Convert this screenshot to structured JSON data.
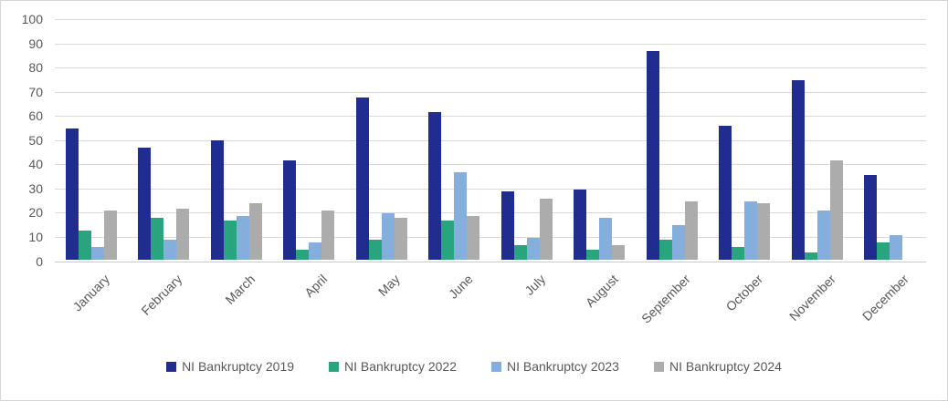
{
  "chart_data": {
    "type": "bar",
    "title": "",
    "xlabel": "",
    "ylabel": "",
    "ylim": [
      0,
      100
    ],
    "ytick_step": 10,
    "grid": true,
    "legend_position": "bottom",
    "categories": [
      "January",
      "February",
      "March",
      "April",
      "May",
      "June",
      "July",
      "August",
      "September",
      "October",
      "November",
      "December"
    ],
    "series": [
      {
        "name": "NI Bankruptcy 2019",
        "color": "#212c8f",
        "values": [
          54,
          46,
          49,
          41,
          67,
          61,
          28,
          29,
          86,
          55,
          74,
          35
        ]
      },
      {
        "name": "NI Bankruptcy 2022",
        "color": "#28a57e",
        "values": [
          12,
          17,
          16,
          4,
          8,
          16,
          6,
          4,
          8,
          5,
          3,
          7
        ]
      },
      {
        "name": "NI Bankruptcy 2023",
        "color": "#84aedc",
        "values": [
          5,
          8,
          18,
          7,
          19,
          36,
          9,
          17,
          14,
          24,
          20,
          10
        ]
      },
      {
        "name": "NI Bankruptcy 2024",
        "color": "#acacac",
        "values": [
          20,
          21,
          23,
          20,
          17,
          18,
          25,
          6,
          24,
          23,
          41,
          null
        ]
      }
    ],
    "colors": {
      "axis_text": "#595959",
      "gridline": "#d9d9d9",
      "baseline": "#c9c9c9",
      "background": "#ffffff"
    }
  }
}
